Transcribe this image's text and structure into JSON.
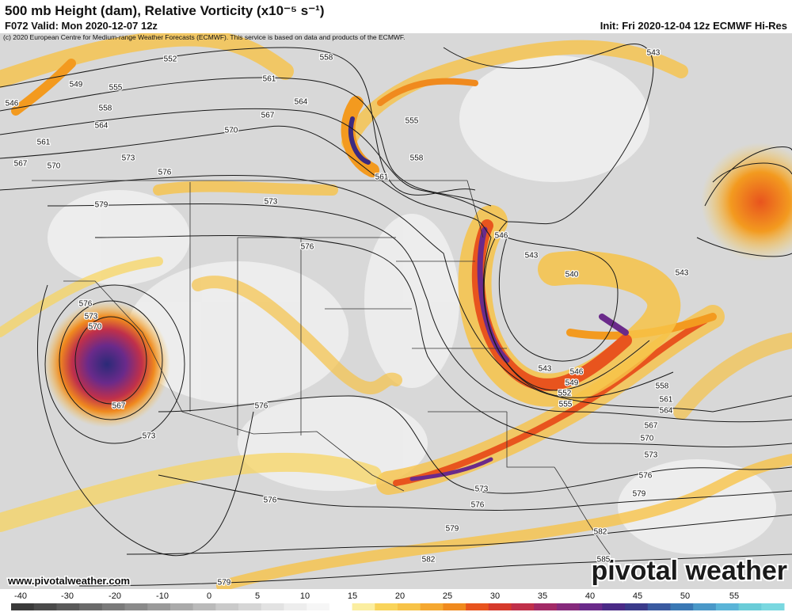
{
  "header": {
    "title": "500 mb Height (dam), Relative Vorticity (x10⁻⁵ s⁻¹)",
    "valid": "F072 Valid: Mon 2020-12-07 12z",
    "init": "Init: Fri 2020-12-04 12z ECMWF Hi-Res",
    "copyright": "(c) 2020 European Centre for Medium-range Weather Forecasts (ECMWF). This service is based on data and products of the ECMWF."
  },
  "contour_labels": [
    552,
    549,
    555,
    558,
    546,
    564,
    561,
    567,
    570,
    573,
    576,
    579,
    570,
    567,
    564,
    561,
    558,
    555,
    558,
    561,
    573,
    576,
    543,
    546,
    543,
    540,
    543,
    543,
    546,
    549,
    552,
    555,
    558,
    561,
    564,
    567,
    570,
    573,
    576,
    579,
    582,
    585,
    573,
    576,
    579,
    582,
    579,
    576,
    573,
    576,
    567,
    576,
    573,
    570
  ],
  "colorbar": {
    "labels": [
      -40,
      -30,
      -20,
      -10,
      0,
      5,
      10,
      15,
      20,
      25,
      30,
      35,
      40,
      45,
      50,
      55
    ]
  },
  "footer": {
    "website": "www.pivotalweather.com",
    "logo": "pivotal weather"
  }
}
